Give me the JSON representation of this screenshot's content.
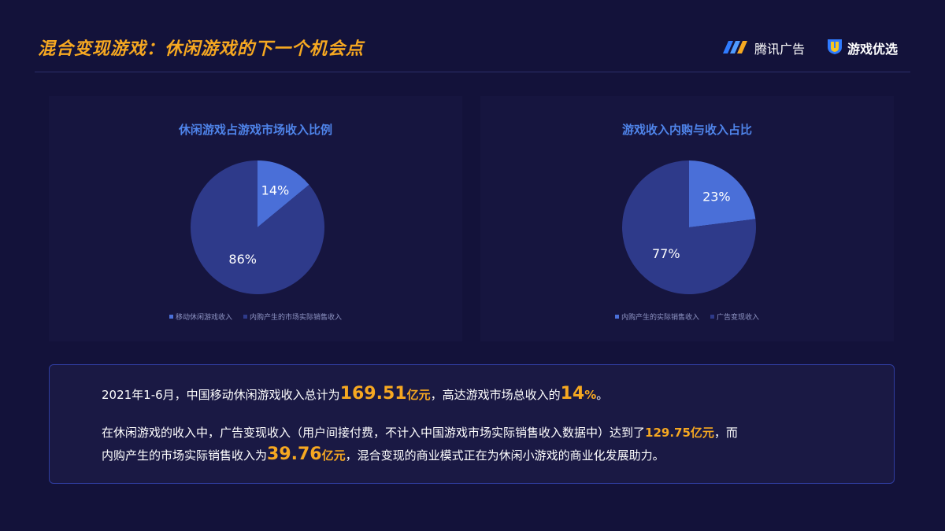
{
  "page": {
    "title": "混合变现游戏：休闲游戏的下一个机会点",
    "brands": [
      {
        "name": "腾讯广告",
        "icon": "tencent-ads-logo-icon"
      },
      {
        "name": "游戏优选",
        "icon": "youxuan-shield-logo-icon"
      }
    ]
  },
  "colors": {
    "background": "#13123a",
    "title_accent": "#f6a821",
    "chart_title": "#4f84ea",
    "slice_light": "#4a6fd8",
    "slice_dark": "#2e3a8a"
  },
  "chart_data": [
    {
      "type": "pie",
      "title": "休闲游戏占游戏市场收入比例",
      "slices": [
        {
          "label": "移动休闲游戏收入",
          "value": 14,
          "display": "14%",
          "color": "#4a6fd8"
        },
        {
          "label": "内购产生的市场实际销售收入",
          "value": 86,
          "display": "86%",
          "color": "#2e3a8a"
        }
      ],
      "legend": "bottom"
    },
    {
      "type": "pie",
      "title": "游戏收入内购与收入占比",
      "slices": [
        {
          "label": "内购产生的实际销售收入",
          "value": 23,
          "display": "23%",
          "color": "#4a6fd8"
        },
        {
          "label": "广告变现收入",
          "value": 77,
          "display": "77%",
          "color": "#2e3a8a"
        }
      ],
      "legend": "bottom"
    }
  ],
  "summary": {
    "line1": {
      "pre": "2021年1-6月，中国移动休闲游戏收入总计为",
      "num1": "169.51",
      "unit1": "亿元",
      "mid": "，高达游戏市场总收入的",
      "num2": "14",
      "unit2": "%",
      "end": "。"
    },
    "line2": {
      "pre": "在休闲游戏的收入中，广告变现收入（用户间接付费，不计入中国游戏市场实际销售收入数据中）达到了",
      "num": "129.75亿元",
      "end": "，而"
    },
    "line3": {
      "pre": "内购产生的市场实际销售收入为",
      "num": "39.76",
      "unit": "亿元",
      "end": "，混合变现的商业模式正在为休闲小游戏的商业化发展助力。"
    }
  }
}
